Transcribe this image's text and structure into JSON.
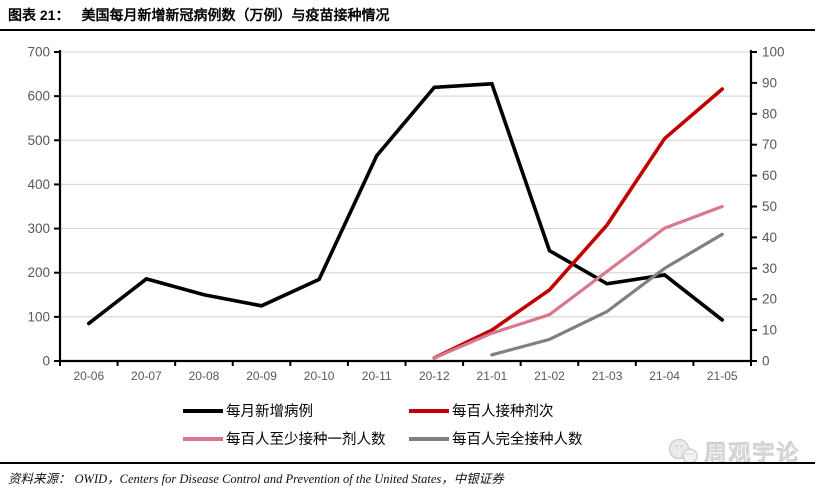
{
  "title": {
    "label": "图表 21：",
    "text": "美国每月新增新冠病例数（万例）与疫苗接种情况"
  },
  "source": {
    "label": "资料来源：",
    "text": "OWID，Centers for Disease Control and Prevention of the United States，中银证券"
  },
  "watermark": {
    "icon": "chat-bubbles-logo-icon",
    "text": "周观宇论"
  },
  "colors": {
    "axis_line": "#000000",
    "grid_line": "#d9d9d9",
    "tick_label": "#595959",
    "title_text": "#000000",
    "series_black": "#000000",
    "series_red": "#c00000",
    "series_pink": "#d6798c",
    "series_gray": "#808080"
  },
  "chart_data": {
    "type": "line",
    "title": "美国每月新增新冠病例数（万例）与疫苗接种情况",
    "categories": [
      "20-06",
      "20-07",
      "20-08",
      "20-09",
      "20-10",
      "20-11",
      "20-12",
      "21-01",
      "21-02",
      "21-03",
      "21-04",
      "21-05"
    ],
    "series": [
      {
        "name": "每月新增病例",
        "axis": "left",
        "color": "#000000",
        "values": [
          85,
          186,
          150,
          125,
          185,
          465,
          620,
          628,
          250,
          175,
          195,
          93
        ]
      },
      {
        "name": "每百人接种剂次",
        "axis": "right",
        "color": "#c00000",
        "values": [
          null,
          null,
          null,
          null,
          null,
          null,
          1,
          10,
          23,
          44,
          72,
          88
        ]
      },
      {
        "name": "每百人至少接种一剂人数",
        "axis": "right",
        "color": "#d6798c",
        "values": [
          null,
          null,
          null,
          null,
          null,
          null,
          1,
          9,
          15,
          29,
          43,
          50
        ]
      },
      {
        "name": "每百人完全接种人数",
        "axis": "right",
        "color": "#808080",
        "values": [
          null,
          null,
          null,
          null,
          null,
          null,
          null,
          2,
          7,
          16,
          30,
          41
        ]
      }
    ],
    "left_axis": {
      "min": 0,
      "max": 700,
      "step": 100
    },
    "right_axis": {
      "min": 0,
      "max": 100,
      "step": 10
    },
    "grid": true,
    "legend_position": "bottom",
    "xlabel": "",
    "ylabel_left": "",
    "ylabel_right": ""
  }
}
